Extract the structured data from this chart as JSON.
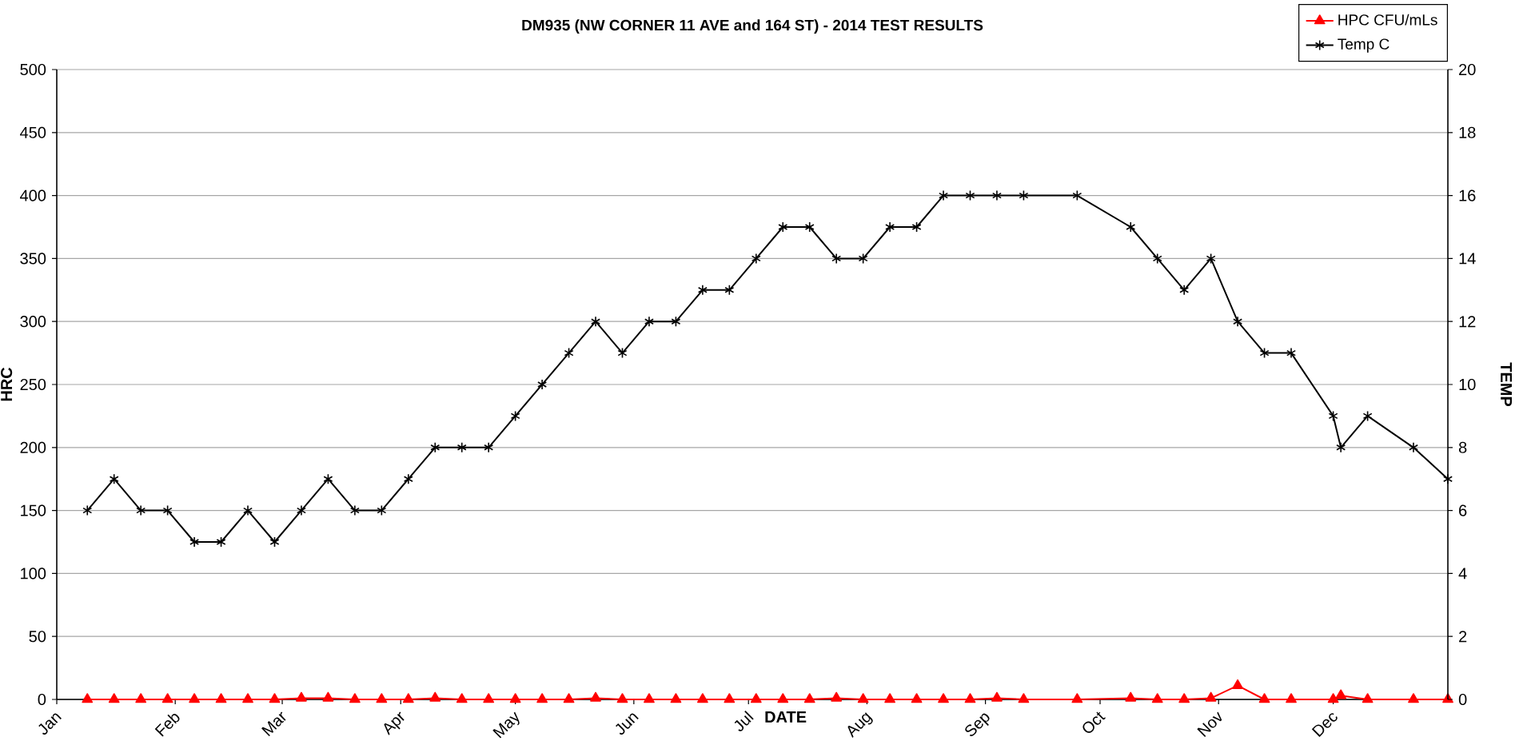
{
  "chart_data": {
    "type": "line",
    "title": "DM935 (NW CORNER 11 AVE and 164 ST) - 2014 TEST RESULTS",
    "xlabel": "DATE",
    "ylabel": "HRC",
    "y2label": "TEMP",
    "x": [
      "2014-01-09",
      "2014-01-16",
      "2014-01-23",
      "2014-01-30",
      "2014-02-06",
      "2014-02-13",
      "2014-02-20",
      "2014-02-27",
      "2014-03-06",
      "2014-03-13",
      "2014-03-20",
      "2014-03-27",
      "2014-04-03",
      "2014-04-10",
      "2014-04-17",
      "2014-04-24",
      "2014-05-01",
      "2014-05-08",
      "2014-05-15",
      "2014-05-22",
      "2014-05-29",
      "2014-06-05",
      "2014-06-12",
      "2014-06-19",
      "2014-06-26",
      "2014-07-03",
      "2014-07-10",
      "2014-07-17",
      "2014-07-24",
      "2014-07-31",
      "2014-08-07",
      "2014-08-14",
      "2014-08-21",
      "2014-08-28",
      "2014-09-04",
      "2014-09-11",
      "2014-09-25",
      "2014-10-09",
      "2014-10-16",
      "2014-10-23",
      "2014-10-30",
      "2014-11-06",
      "2014-11-13",
      "2014-11-20",
      "2014-12-01",
      "2014-12-03",
      "2014-12-10",
      "2014-12-22",
      "2014-12-31"
    ],
    "series": [
      {
        "name": "HPC CFU/mLs",
        "color": "#ff0000",
        "marker": "triangle",
        "axis": "y",
        "values": [
          0,
          0,
          0,
          0,
          0,
          0,
          0,
          0,
          1,
          1,
          0,
          0,
          0,
          1,
          0,
          0,
          0,
          0,
          0,
          1,
          0,
          0,
          0,
          0,
          0,
          0,
          0,
          0,
          1,
          0,
          0,
          0,
          0,
          0,
          1,
          0,
          0,
          1,
          0,
          0,
          1,
          11,
          0,
          0,
          0,
          3,
          0,
          0,
          0
        ]
      },
      {
        "name": "Temp C",
        "color": "#000000",
        "marker": "cross",
        "axis": "y2",
        "values": [
          6,
          7,
          6,
          6,
          5,
          5,
          6,
          5,
          6,
          7,
          6,
          6,
          7,
          8,
          8,
          8,
          9,
          10,
          11,
          12,
          11,
          12,
          12,
          13,
          13,
          14,
          15,
          15,
          14,
          14,
          15,
          15,
          16,
          16,
          16,
          16,
          16,
          15,
          14,
          13,
          14,
          12,
          11,
          11,
          9,
          8,
          9,
          8,
          7
        ]
      }
    ],
    "xlim": [
      "2014-01-01",
      "2014-12-31"
    ],
    "xticks": [
      {
        "value": "2014-01-01",
        "label": "Jan"
      },
      {
        "value": "2014-02-01",
        "label": "Feb"
      },
      {
        "value": "2014-03-01",
        "label": "Mar"
      },
      {
        "value": "2014-04-01",
        "label": "Apr"
      },
      {
        "value": "2014-05-01",
        "label": "May"
      },
      {
        "value": "2014-06-01",
        "label": "Jun"
      },
      {
        "value": "2014-07-01",
        "label": "Jul"
      },
      {
        "value": "2014-08-01",
        "label": "Aug"
      },
      {
        "value": "2014-09-01",
        "label": "Sep"
      },
      {
        "value": "2014-10-01",
        "label": "Oct"
      },
      {
        "value": "2014-11-01",
        "label": "Nov"
      },
      {
        "value": "2014-12-01",
        "label": "Dec"
      }
    ],
    "ylim": [
      0,
      500
    ],
    "yticks": [
      0,
      50,
      100,
      150,
      200,
      250,
      300,
      350,
      400,
      450,
      500
    ],
    "y2lim": [
      0,
      20
    ],
    "y2ticks": [
      0,
      2,
      4,
      6,
      8,
      10,
      12,
      14,
      16,
      18,
      20
    ],
    "grid": "y",
    "legend": "top right"
  }
}
